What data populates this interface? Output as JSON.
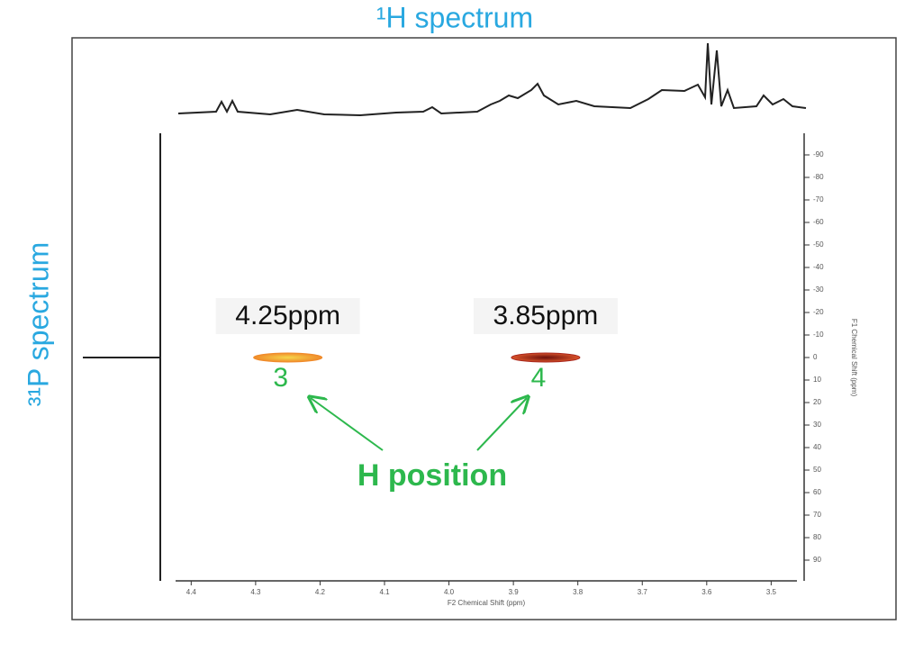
{
  "chart_data": {
    "type": "scatter",
    "title": "¹H spectrum",
    "left_label": "³¹P spectrum",
    "x_label": "F2 Chemical Shift (ppm)",
    "y_label": "F1 Chemical Shift (ppm)",
    "xlim": [
      4.42,
      3.46
    ],
    "xticks": [
      4.4,
      4.3,
      4.2,
      4.1,
      {
        "value": 4,
        "label": "4.0"
      },
      3.9,
      3.8,
      3.7,
      3.6,
      3.5
    ],
    "ylim": [
      -100,
      100
    ],
    "yticks": [
      -90,
      -80,
      -70,
      -60,
      -50,
      -40,
      -30,
      -20,
      -10,
      0,
      10,
      20,
      30,
      40,
      50,
      60,
      70,
      80,
      90
    ],
    "series": [
      {
        "name": null,
        "colors": [
          "#f08a2a",
          "#a8261c"
        ],
        "x": [
          4.25,
          3.85
        ],
        "values": [
          0,
          0
        ],
        "value_labels": [
          "4.25ppm",
          "3.85ppm"
        ],
        "point_names": [
          "3",
          "4"
        ]
      }
    ],
    "annotation": "H position"
  }
}
